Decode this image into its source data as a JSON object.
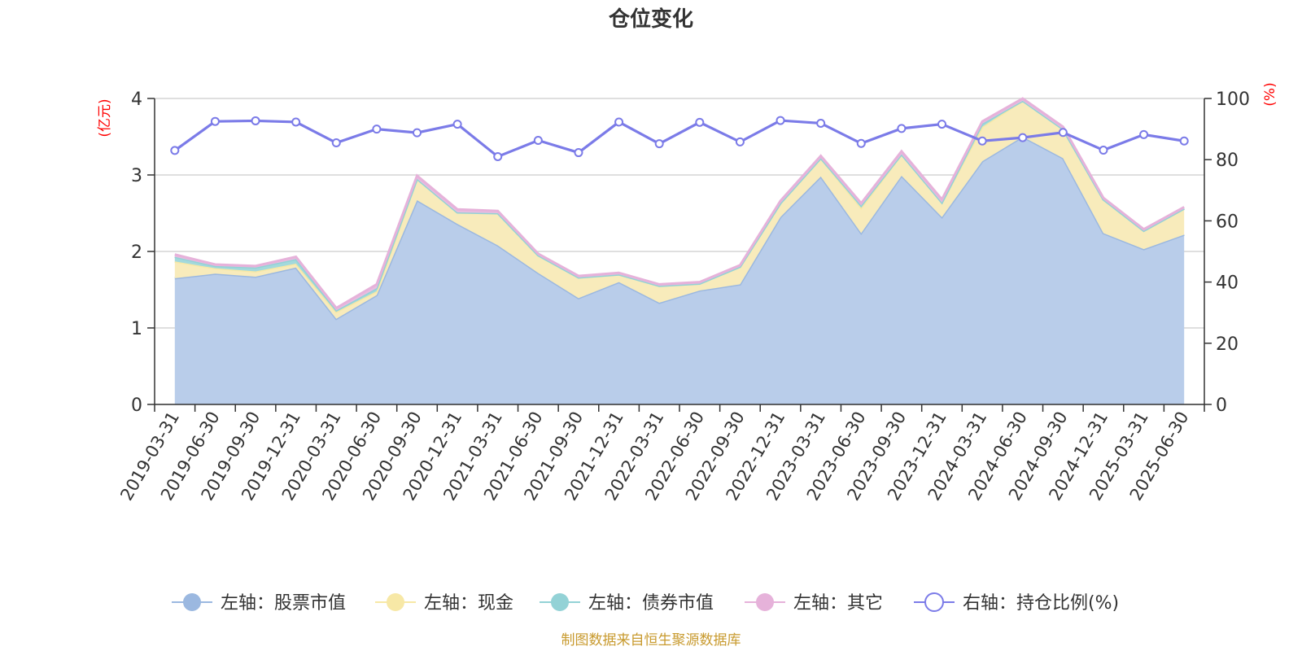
{
  "chart_data": {
    "type": "area",
    "title": "仓位变化",
    "left_axis_unit": "(亿元)",
    "right_axis_unit": "(%)",
    "left_ylim": [
      0,
      4
    ],
    "left_ticks": [
      "0",
      "1",
      "2",
      "3",
      "4"
    ],
    "right_ylim": [
      0,
      100
    ],
    "right_ticks": [
      "0",
      "20",
      "40",
      "60",
      "80",
      "100"
    ],
    "grid": true,
    "legend_position": "bottom",
    "source": "制图数据来自恒生聚源数据库",
    "categories": [
      "2019-03-31",
      "2019-06-30",
      "2019-09-30",
      "2019-12-31",
      "2020-03-31",
      "2020-06-30",
      "2020-09-30",
      "2020-12-31",
      "2021-03-31",
      "2021-06-30",
      "2021-09-30",
      "2021-12-31",
      "2022-03-31",
      "2022-06-30",
      "2022-09-30",
      "2022-12-31",
      "2023-03-31",
      "2023-06-30",
      "2023-09-30",
      "2023-12-31",
      "2024-03-31",
      "2024-06-30",
      "2024-09-30",
      "2024-12-31",
      "2025-03-31",
      "2025-06-30"
    ],
    "series": [
      {
        "name": "左轴：股票市值",
        "axis": "left",
        "color": "#9bb8e0",
        "fill": "#b9cdea",
        "values": [
          1.65,
          1.71,
          1.67,
          1.79,
          1.12,
          1.43,
          2.67,
          2.36,
          2.08,
          1.72,
          1.39,
          1.6,
          1.33,
          1.49,
          1.57,
          2.45,
          2.98,
          2.24,
          2.99,
          2.45,
          3.18,
          3.5,
          3.22,
          2.24,
          2.03,
          2.22
        ]
      },
      {
        "name": "左轴：现金",
        "axis": "left",
        "color": "#f7e8a6",
        "fill": "#f8ebbb",
        "values": [
          0.22,
          0.07,
          0.07,
          0.05,
          0.09,
          0.05,
          0.28,
          0.15,
          0.42,
          0.23,
          0.27,
          0.1,
          0.22,
          0.09,
          0.23,
          0.18,
          0.24,
          0.33,
          0.28,
          0.19,
          0.45,
          0.47,
          0.38,
          0.44,
          0.24,
          0.34
        ]
      },
      {
        "name": "左轴：债券市值",
        "axis": "left",
        "color": "#93d2d6",
        "fill": "#a3d9dc",
        "values": [
          0.06,
          0.03,
          0.05,
          0.06,
          0.02,
          0.04,
          0.0,
          0.0,
          0.0,
          0.0,
          0.0,
          0.0,
          0.0,
          0.0,
          0.0,
          0.0,
          0.0,
          0.03,
          0.0,
          0.0,
          0.04,
          0.0,
          0.0,
          0.0,
          0.0,
          0.0
        ]
      },
      {
        "name": "左轴：其它",
        "axis": "left",
        "color": "#e6b2da",
        "fill": "#e8bde0",
        "values": [
          0.03,
          0.02,
          0.02,
          0.03,
          0.03,
          0.05,
          0.04,
          0.04,
          0.03,
          0.02,
          0.02,
          0.02,
          0.02,
          0.02,
          0.02,
          0.03,
          0.03,
          0.03,
          0.04,
          0.04,
          0.03,
          0.03,
          0.03,
          0.02,
          0.02,
          0.02
        ]
      },
      {
        "name": "右轴：持仓比例(%)",
        "axis": "right",
        "color": "#7b7be8",
        "values": [
          83,
          92.5,
          92.7,
          92.3,
          85.5,
          90,
          88.8,
          91.6,
          81,
          86.3,
          82.3,
          92.3,
          85.2,
          92.2,
          85.8,
          92.8,
          91.9,
          85.3,
          90.2,
          91.6,
          86.1,
          87.2,
          88.9,
          83.1,
          88.2,
          86.1
        ]
      }
    ]
  }
}
